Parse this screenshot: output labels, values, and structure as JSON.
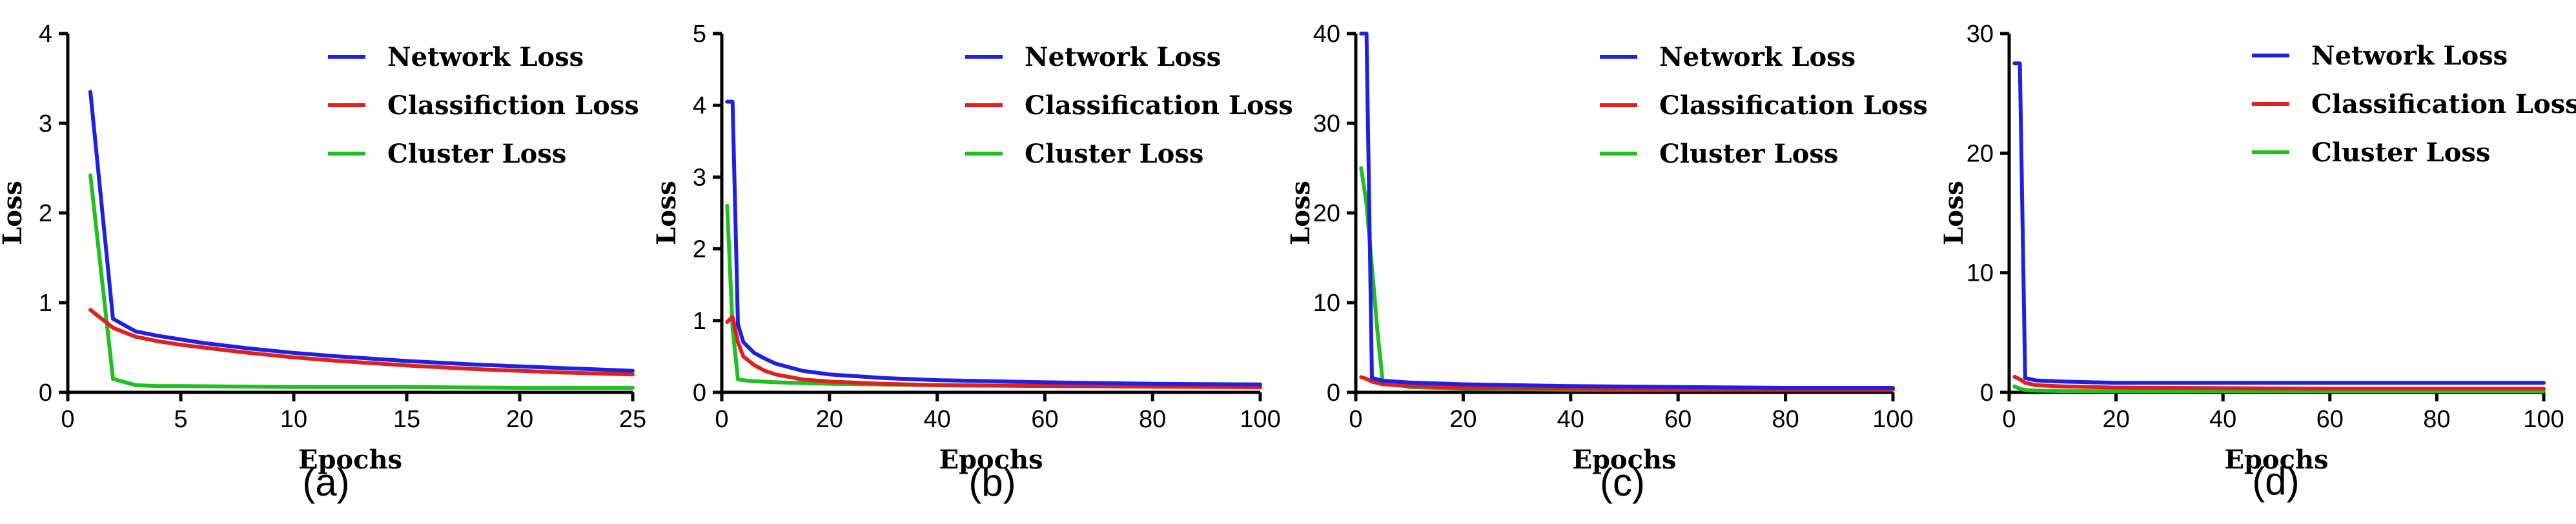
{
  "chart_data": [
    {
      "type": "line",
      "caption": "(a)",
      "xlabel": "Epochs",
      "ylabel": "Loss",
      "xlim": [
        0,
        25
      ],
      "ylim": [
        0,
        4
      ],
      "xticks": [
        0,
        5,
        10,
        15,
        20,
        25
      ],
      "yticks": [
        0,
        1,
        2,
        3,
        4
      ],
      "legend_position": "top-right",
      "series": [
        {
          "name": "Network Loss",
          "color": "#2020e0",
          "x": [
            1,
            2,
            3,
            4,
            5,
            6,
            8,
            10,
            12,
            15,
            18,
            20,
            22,
            25
          ],
          "y": [
            3.35,
            0.82,
            0.68,
            0.63,
            0.59,
            0.55,
            0.49,
            0.44,
            0.4,
            0.35,
            0.31,
            0.29,
            0.27,
            0.24
          ]
        },
        {
          "name": "Classifiction Loss",
          "color": "#e02020",
          "x": [
            1,
            2,
            3,
            4,
            5,
            6,
            8,
            10,
            12,
            15,
            18,
            20,
            22,
            25
          ],
          "y": [
            0.92,
            0.72,
            0.62,
            0.57,
            0.53,
            0.5,
            0.44,
            0.39,
            0.35,
            0.3,
            0.26,
            0.24,
            0.22,
            0.2
          ]
        },
        {
          "name": "Cluster Loss",
          "color": "#20c020",
          "x": [
            1,
            2,
            3,
            4,
            5,
            10,
            15,
            20,
            25
          ],
          "y": [
            2.42,
            0.15,
            0.08,
            0.07,
            0.07,
            0.06,
            0.06,
            0.05,
            0.05
          ]
        }
      ]
    },
    {
      "type": "line",
      "caption": "(b)",
      "xlabel": "Epochs",
      "ylabel": "Loss",
      "xlim": [
        0,
        100
      ],
      "ylim": [
        0,
        5
      ],
      "xticks": [
        0,
        20,
        40,
        60,
        80,
        100
      ],
      "yticks": [
        0,
        1,
        2,
        3,
        4,
        5
      ],
      "legend_position": "top-right",
      "series": [
        {
          "name": "Network Loss",
          "color": "#2020e0",
          "x": [
            1,
            2,
            3,
            4,
            6,
            8,
            10,
            15,
            20,
            30,
            40,
            60,
            80,
            100
          ],
          "y": [
            4.05,
            4.05,
            0.95,
            0.7,
            0.55,
            0.47,
            0.4,
            0.3,
            0.25,
            0.2,
            0.17,
            0.14,
            0.12,
            0.11
          ]
        },
        {
          "name": "Classification Loss",
          "color": "#e02020",
          "x": [
            1,
            2,
            3,
            4,
            6,
            8,
            10,
            15,
            20,
            30,
            40,
            60,
            80,
            100
          ],
          "y": [
            0.98,
            1.05,
            0.7,
            0.5,
            0.38,
            0.3,
            0.25,
            0.18,
            0.15,
            0.12,
            0.1,
            0.09,
            0.08,
            0.07
          ]
        },
        {
          "name": "Cluster Loss",
          "color": "#20c020",
          "x": [
            1,
            2,
            3,
            5,
            10,
            20,
            40,
            60,
            80,
            100
          ],
          "y": [
            2.6,
            0.9,
            0.18,
            0.16,
            0.14,
            0.12,
            0.1,
            0.09,
            0.08,
            0.08
          ]
        }
      ]
    },
    {
      "type": "line",
      "caption": "(c)",
      "xlabel": "Epochs",
      "ylabel": "Loss",
      "xlim": [
        0,
        100
      ],
      "ylim": [
        0,
        40
      ],
      "xticks": [
        0,
        20,
        40,
        60,
        80,
        100
      ],
      "yticks": [
        0,
        10,
        20,
        30,
        40
      ],
      "legend_position": "top-right",
      "series": [
        {
          "name": "Network Loss",
          "color": "#2020e0",
          "x": [
            1,
            2,
            3,
            5,
            10,
            20,
            40,
            60,
            80,
            100
          ],
          "y": [
            40,
            40,
            1.6,
            1.3,
            1.1,
            0.9,
            0.7,
            0.6,
            0.5,
            0.5
          ]
        },
        {
          "name": "Classification Loss",
          "color": "#e02020",
          "x": [
            1,
            2,
            3,
            5,
            10,
            20,
            40,
            60,
            80,
            100
          ],
          "y": [
            1.7,
            1.5,
            1.2,
            0.9,
            0.7,
            0.5,
            0.4,
            0.35,
            0.3,
            0.3
          ]
        },
        {
          "name": "Cluster Loss",
          "color": "#20c020",
          "x": [
            1,
            2,
            3,
            4,
            5,
            10,
            20,
            40,
            60,
            80,
            100
          ],
          "y": [
            25,
            21,
            14,
            7,
            1.2,
            0.6,
            0.4,
            0.3,
            0.3,
            0.3,
            0.3
          ]
        }
      ]
    },
    {
      "type": "line",
      "caption": "(d)",
      "xlabel": "Epochs",
      "ylabel": "Loss",
      "xlim": [
        0,
        100
      ],
      "ylim": [
        0,
        30
      ],
      "xticks": [
        0,
        20,
        40,
        60,
        80,
        100
      ],
      "yticks": [
        0,
        10,
        20,
        30
      ],
      "legend_position": "top-right",
      "series": [
        {
          "name": "Network Loss",
          "color": "#2020e0",
          "x": [
            1,
            2,
            3,
            5,
            10,
            20,
            40,
            60,
            80,
            100
          ],
          "y": [
            27.5,
            27.5,
            1.2,
            1.0,
            0.9,
            0.8,
            0.8,
            0.8,
            0.8,
            0.8
          ]
        },
        {
          "name": "Classification Loss",
          "color": "#e02020",
          "x": [
            1,
            2,
            3,
            5,
            10,
            20,
            40,
            60,
            80,
            100
          ],
          "y": [
            1.3,
            1.1,
            0.8,
            0.6,
            0.5,
            0.4,
            0.35,
            0.3,
            0.3,
            0.3
          ]
        },
        {
          "name": "Cluster Loss",
          "color": "#20c020",
          "x": [
            1,
            2,
            3,
            5,
            10,
            20,
            40,
            60,
            80,
            100
          ],
          "y": [
            0.5,
            0.3,
            0.2,
            0.15,
            0.1,
            0.1,
            0.1,
            0.1,
            0.1,
            0.1
          ]
        }
      ]
    }
  ]
}
